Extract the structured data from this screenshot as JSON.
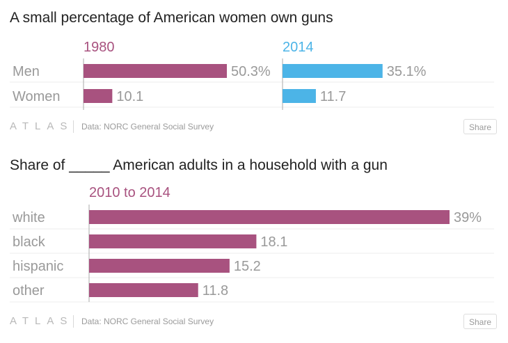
{
  "colors": {
    "magenta": "#a8527f",
    "blue": "#4cb4e7",
    "label": "#999999",
    "gridline": "#eeeeee",
    "axis": "#aaaaaa"
  },
  "atlas_logo": "ATLAS",
  "share_label": "Share",
  "chart_data": [
    {
      "type": "bar",
      "title": "A small percentage of American women own guns",
      "categories": [
        "Men",
        "Women"
      ],
      "series": [
        {
          "name": "1980",
          "values": [
            50.3,
            10.1
          ],
          "value_labels": [
            "50.3%",
            "10.1"
          ],
          "color": "#a8527f"
        },
        {
          "name": "2014",
          "values": [
            35.1,
            11.7
          ],
          "value_labels": [
            "35.1%",
            "11.7"
          ],
          "color": "#4cb4e7"
        }
      ],
      "xlim": [
        0,
        50.3
      ],
      "source": "Data: NORC General Social Survey"
    },
    {
      "type": "bar",
      "title": "Share of _____ American adults in a household with a gun",
      "categories": [
        "white",
        "black",
        "hispanic",
        "other"
      ],
      "series": [
        {
          "name": "2010 to 2014",
          "values": [
            39,
            18.1,
            15.2,
            11.8
          ],
          "value_labels": [
            "39%",
            "18.1",
            "15.2",
            "11.8"
          ],
          "color": "#a8527f"
        }
      ],
      "xlim": [
        0,
        39
      ],
      "source": "Data: NORC General Social Survey"
    }
  ]
}
